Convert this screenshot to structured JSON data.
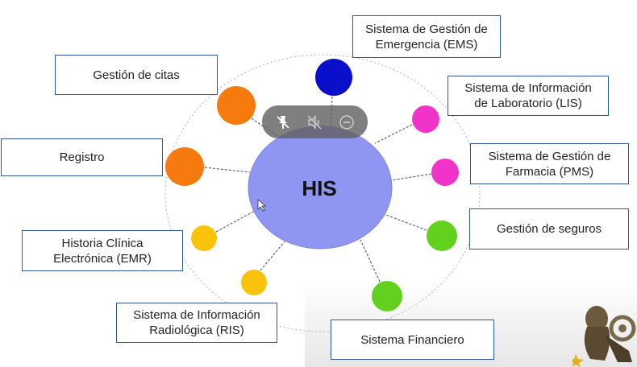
{
  "center": {
    "label": "HIS",
    "color": "#8f96f2"
  },
  "nodes": [
    {
      "label": "Sistema de Gestión de\nEmergencia (EMS)",
      "color": "#0a0fc9"
    },
    {
      "label": "Sistema de Información\nde Laboratorio (LIS)",
      "color": "#f233c9"
    },
    {
      "label": "Sistema de Gestión de\nFarmacia (PMS)",
      "color": "#f233c9"
    },
    {
      "label": "Gestión de seguros",
      "color": "#62d11d"
    },
    {
      "label": "Sistema Financiero",
      "color": "#62d11d"
    },
    {
      "label": "Sistema de Información\nRadiológica (RIS)",
      "color": "#f8c30a"
    },
    {
      "label": "Historia Clínica\nElectrónica (EMR)",
      "color": "#f8c30a"
    },
    {
      "label": "Registro",
      "color": "#f77a0e"
    },
    {
      "label": "Gestión de citas",
      "color": "#f77a0e"
    }
  ],
  "toolbar": {
    "icons": [
      "pin-off-icon",
      "mute-icon",
      "minus-circle-icon"
    ]
  },
  "colors": {
    "box_border": "#2f5597",
    "link": "#3b4a6b"
  }
}
